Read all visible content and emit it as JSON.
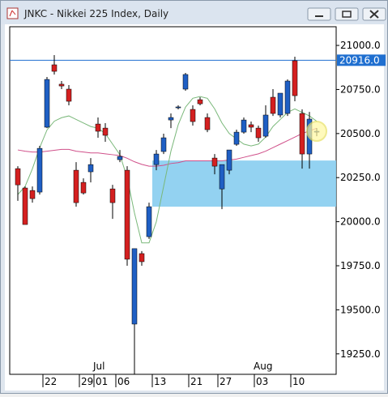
{
  "chart_data": {
    "type": "candlestick",
    "title": "JNKC - Nikkei 225 Index, Daily",
    "categories": [
      null,
      null,
      null,
      null,
      "22",
      null,
      null,
      null,
      null,
      "29",
      null,
      "01",
      null,
      null,
      "06",
      null,
      null,
      null,
      null,
      "13",
      null,
      null,
      null,
      null,
      "21",
      null,
      null,
      null,
      "27",
      null,
      null,
      null,
      null,
      "03",
      null,
      null,
      null,
      null,
      "10",
      null,
      null,
      null
    ],
    "months": [
      {
        "label": "Jul",
        "first_category": "01"
      },
      {
        "label": "Aug",
        "first_category": "03"
      }
    ],
    "open": [
      20301,
      20191,
      20177,
      20168,
      20536,
      20890,
      20780,
      20752,
      20292,
      20223,
      20283,
      20554,
      20531,
      20186,
      20352,
      20292,
      19419,
      19819,
      19915,
      20324,
      20398,
      20577,
      20646,
      20752,
      20637,
      20692,
      20591,
      20361,
      20186,
      20292,
      20439,
      20508,
      20550,
      20531,
      20485,
      20706,
      20605,
      20614,
      20913,
      20614,
      20384,
      20508
    ],
    "high": [
      20315,
      20200,
      20200,
      20430,
      20821,
      20945,
      20798,
      20775,
      20338,
      20246,
      20361,
      20591,
      20559,
      20209,
      20407,
      20315,
      19847,
      19833,
      20108,
      20407,
      20499,
      20614,
      20660,
      20844,
      20660,
      20706,
      20614,
      20384,
      20324,
      20407,
      20522,
      20591,
      20568,
      20545,
      20660,
      20752,
      20729,
      20807,
      20936,
      20637,
      20623,
      20531
    ],
    "low": [
      20118,
      19984,
      20108,
      20154,
      20531,
      20835,
      20752,
      20660,
      20085,
      20154,
      20223,
      20476,
      20453,
      20016,
      20338,
      19750,
      19134,
      19750,
      19902,
      20292,
      20384,
      20531,
      20637,
      20743,
      20545,
      20660,
      20508,
      20269,
      20071,
      20269,
      20430,
      20499,
      20508,
      20453,
      20476,
      20600,
      20591,
      20600,
      20683,
      20301,
      20301,
      20485
    ],
    "close": [
      20209,
      19984,
      20131,
      20416,
      20807,
      20853,
      20770,
      20683,
      20108,
      20163,
      20324,
      20513,
      20490,
      20108,
      20370,
      19787,
      19847,
      19773,
      20085,
      20384,
      20476,
      20591,
      20651,
      20835,
      20568,
      20669,
      20522,
      20315,
      20324,
      20407,
      20508,
      20577,
      20536,
      20476,
      20605,
      20614,
      20729,
      20798,
      20715,
      20384,
      20582,
      20513
    ],
    "up_color": "#1f5fc4",
    "down_color": "#d42020",
    "series": [
      {
        "color": "#d0508a",
        "values": [
          20407,
          20400,
          20395,
          20395,
          20400,
          20405,
          20410,
          20410,
          20400,
          20395,
          20390,
          20390,
          20385,
          20380,
          20375,
          20360,
          20340,
          20325,
          20315,
          20315,
          20320,
          20330,
          20335,
          20345,
          20345,
          20345,
          20345,
          20345,
          20345,
          20350,
          20355,
          20365,
          20375,
          20385,
          20400,
          20420,
          20440,
          20460,
          20480,
          20500,
          20515,
          20530
        ]
      },
      {
        "color": "#7ab87a",
        "values": [
          20154,
          20200,
          20300,
          20420,
          20520,
          20570,
          20590,
          20600,
          20580,
          20560,
          20540,
          20530,
          20500,
          20440,
          20380,
          20250,
          20050,
          19880,
          19880,
          20000,
          20200,
          20400,
          20550,
          20650,
          20700,
          20710,
          20700,
          20640,
          20560,
          20500,
          20470,
          20440,
          20430,
          20440,
          20480,
          20540,
          20580,
          20620,
          20640,
          20620,
          20600,
          20570
        ]
      }
    ],
    "price_line": {
      "value": 20916,
      "label": "20916.0",
      "color": "#1f6fd0"
    },
    "zone": {
      "low": 20085,
      "high": 20347,
      "color": "#87cdf0"
    },
    "ylim": [
      19134,
      21106
    ],
    "yticks": [
      {
        "value": 19250,
        "label": "19250.0"
      },
      {
        "value": 19500,
        "label": "19500.0"
      },
      {
        "value": 19750,
        "label": "19750.0"
      },
      {
        "value": 20000,
        "label": "20000.0"
      },
      {
        "value": 20250,
        "label": "20250.0"
      },
      {
        "value": 20500,
        "label": "20500.0"
      },
      {
        "value": 20750,
        "label": "20750.0"
      },
      {
        "value": 21000,
        "label": "21000.0"
      }
    ]
  }
}
